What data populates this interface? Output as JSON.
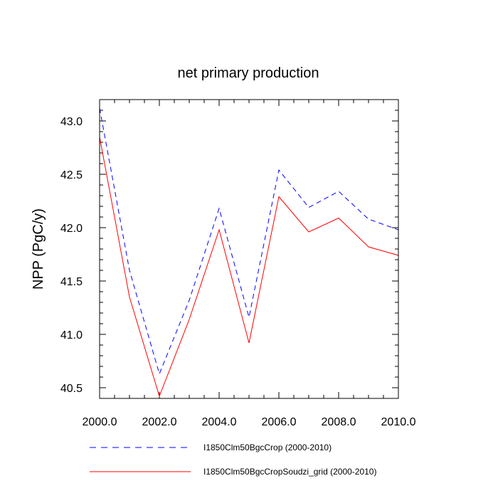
{
  "chart_data": {
    "type": "line",
    "title": "net primary production",
    "xlabel": "",
    "ylabel": "NPP  (PgC/y)",
    "xlim": [
      2000,
      2010
    ],
    "ylim": [
      40.4,
      43.2
    ],
    "x_ticks": [
      2000,
      2002,
      2004,
      2006,
      2008,
      2010
    ],
    "x_tick_labels": [
      "2000.0",
      "2002.0",
      "2004.0",
      "2006.0",
      "2008.0",
      "2010.0"
    ],
    "y_ticks": [
      40.5,
      41.0,
      41.5,
      42.0,
      42.5,
      43.0
    ],
    "y_tick_labels": [
      "40.5",
      "41.0",
      "41.5",
      "42.0",
      "42.5",
      "43.0"
    ],
    "grid": false,
    "legend_position": "bottom",
    "x": [
      2000,
      2001,
      2002,
      2003,
      2004,
      2005,
      2006,
      2007,
      2008,
      2009,
      2010
    ],
    "series": [
      {
        "name": "I1850Clm50BgcCrop (2000-2010)",
        "color": "#0000ff",
        "style": "dashed",
        "values": [
          43.12,
          41.6,
          40.63,
          41.32,
          42.18,
          41.16,
          42.54,
          42.19,
          42.34,
          42.08,
          41.98
        ]
      },
      {
        "name": "I1850Clm50BgcCropSoudzi_grid (2000-2010)",
        "color": "#ff0000",
        "style": "solid",
        "values": [
          42.85,
          41.35,
          40.42,
          41.14,
          41.98,
          40.92,
          42.29,
          41.96,
          42.09,
          41.82,
          41.74
        ]
      }
    ]
  }
}
